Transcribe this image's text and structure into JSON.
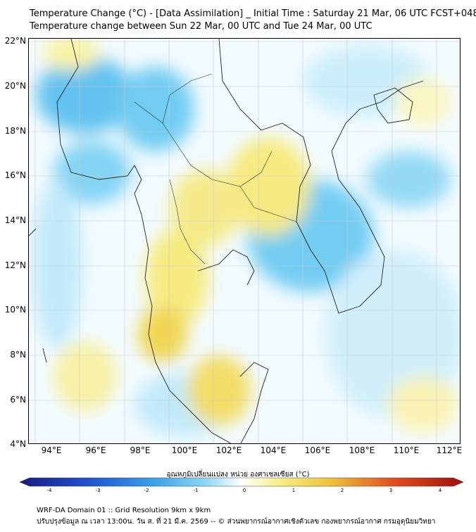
{
  "header": {
    "title": "Temperature Change (°C) - [Data Assimilation] _ Initial Time : Saturday 21 Mar, 06 UTC FCST+048",
    "subtitle": "Temperature change between Sun 22 Mar, 00 UTC and Tue 24 Mar, 00 UTC"
  },
  "map": {
    "lat_labels": [
      "22°N",
      "20°N",
      "18°N",
      "16°N",
      "14°N",
      "12°N",
      "10°N",
      "8°N",
      "6°N",
      "4°N"
    ],
    "lon_labels": [
      "94°E",
      "96°E",
      "98°E",
      "100°E",
      "102°E",
      "104°E",
      "106°E",
      "108°E",
      "110°E",
      "112°E"
    ]
  },
  "colorbar": {
    "title": "อุณหภูมิเปลี่ยนแปลง หน่วย องศาเซลเซียส (°C)",
    "ticks": [
      "-4",
      "-3",
      "-2",
      "-1",
      "0",
      "1",
      "2",
      "3",
      "4"
    ],
    "colors": {
      "cold_extreme": "#1a1a80",
      "cold": "#3aa0e8",
      "cool": "#8fd8f5",
      "neutral": "#ffffff",
      "warm": "#f7f08a",
      "hot": "#f0c23a",
      "hot_extreme": "#a01010"
    }
  },
  "footer": {
    "line1": "WRF-DA Domain 01 :: Grid Resolution 9km x 9km",
    "line2": "ปรับปรุงข้อมูล ณ เวลา 13:00น. วัน ส. ที่ 21 มี.ค. 2569 -- © ส่วนพยากรณ์อากาศเชิงตัวเลข กองพยากรณ์อากาศ กรมอุตุนิยมวิทยา"
  }
}
